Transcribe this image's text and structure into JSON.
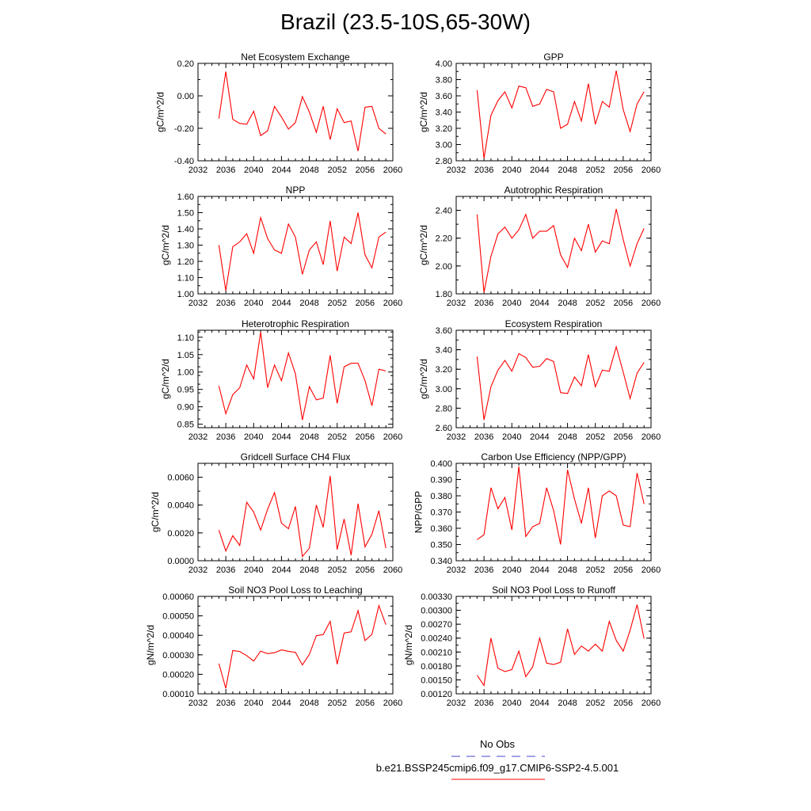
{
  "title": "Brazil (23.5-10S,65-30W)",
  "legend": {
    "obs_label": "No Obs",
    "obs_color": "#4444cc",
    "model_label": "b.e21.BSSP245cmip6.f09_g17.CMIP6-SSP2-4.5.001",
    "model_color": "#ff0000"
  },
  "chart_data": [
    {
      "type": "line",
      "title": "Net Ecosystem Exchange",
      "ylabel": "gC/m^2/d",
      "xlim": [
        2032,
        2060
      ],
      "xticks": [
        "2032",
        "2036",
        "2040",
        "2044",
        "2048",
        "2052",
        "2056",
        "2060"
      ],
      "ylim": [
        -0.4,
        0.2
      ],
      "yticks": [
        "-0.40",
        "-0.20",
        "0.00",
        "0.20"
      ],
      "x": [
        2035,
        2036,
        2037,
        2038,
        2039,
        2040,
        2041,
        2042,
        2043,
        2044,
        2045,
        2046,
        2047,
        2048,
        2049,
        2050,
        2051,
        2052,
        2053,
        2054,
        2055,
        2056,
        2057,
        2058,
        2059
      ],
      "values": [
        -0.14,
        0.15,
        -0.145,
        -0.17,
        -0.175,
        -0.095,
        -0.245,
        -0.215,
        -0.065,
        -0.13,
        -0.205,
        -0.165,
        -0.005,
        -0.1,
        -0.225,
        -0.065,
        -0.27,
        -0.08,
        -0.165,
        -0.155,
        -0.34,
        -0.07,
        -0.065,
        -0.2,
        -0.235
      ]
    },
    {
      "type": "line",
      "title": "GPP",
      "ylabel": "gC/m^2/d",
      "xlim": [
        2032,
        2060
      ],
      "xticks": [
        "2032",
        "2036",
        "2040",
        "2044",
        "2048",
        "2052",
        "2056",
        "2060"
      ],
      "ylim": [
        2.8,
        4.0
      ],
      "yticks": [
        "2.80",
        "3.00",
        "3.20",
        "3.40",
        "3.60",
        "3.80",
        "4.00"
      ],
      "x": [
        2035,
        2036,
        2037,
        2038,
        2039,
        2040,
        2041,
        2042,
        2043,
        2044,
        2045,
        2046,
        2047,
        2048,
        2049,
        2050,
        2051,
        2052,
        2053,
        2054,
        2055,
        2056,
        2057,
        2058,
        2059
      ],
      "values": [
        3.67,
        2.83,
        3.36,
        3.54,
        3.65,
        3.45,
        3.72,
        3.7,
        3.47,
        3.5,
        3.68,
        3.65,
        3.2,
        3.25,
        3.53,
        3.29,
        3.75,
        3.25,
        3.53,
        3.46,
        3.91,
        3.43,
        3.16,
        3.5,
        3.65
      ]
    },
    {
      "type": "line",
      "title": "NPP",
      "ylabel": "gC/m^2/d",
      "xlim": [
        2032,
        2060
      ],
      "xticks": [
        "2032",
        "2036",
        "2040",
        "2044",
        "2048",
        "2052",
        "2056",
        "2060"
      ],
      "ylim": [
        1.0,
        1.6
      ],
      "yticks": [
        "1.00",
        "1.10",
        "1.20",
        "1.30",
        "1.40",
        "1.50",
        "1.60"
      ],
      "x": [
        2035,
        2036,
        2037,
        2038,
        2039,
        2040,
        2041,
        2042,
        2043,
        2044,
        2045,
        2046,
        2047,
        2048,
        2049,
        2050,
        2051,
        2052,
        2053,
        2054,
        2055,
        2056,
        2057,
        2058,
        2059
      ],
      "values": [
        1.3,
        1.02,
        1.29,
        1.32,
        1.37,
        1.25,
        1.47,
        1.34,
        1.27,
        1.25,
        1.43,
        1.35,
        1.12,
        1.27,
        1.32,
        1.18,
        1.45,
        1.14,
        1.35,
        1.31,
        1.5,
        1.24,
        1.16,
        1.35,
        1.38
      ]
    },
    {
      "type": "line",
      "title": "Autotrophic Respiration",
      "ylabel": "gC/m^2/d",
      "xlim": [
        2032,
        2060
      ],
      "xticks": [
        "2032",
        "2036",
        "2040",
        "2044",
        "2048",
        "2052",
        "2056",
        "2060"
      ],
      "ylim": [
        1.8,
        2.5
      ],
      "yticks": [
        "1.80",
        "2.00",
        "2.20",
        "2.40"
      ],
      "x": [
        2035,
        2036,
        2037,
        2038,
        2039,
        2040,
        2041,
        2042,
        2043,
        2044,
        2045,
        2046,
        2047,
        2048,
        2049,
        2050,
        2051,
        2052,
        2053,
        2054,
        2055,
        2056,
        2057,
        2058,
        2059
      ],
      "values": [
        2.37,
        1.81,
        2.07,
        2.23,
        2.28,
        2.2,
        2.26,
        2.37,
        2.2,
        2.25,
        2.25,
        2.29,
        2.08,
        1.99,
        2.2,
        2.11,
        2.3,
        2.1,
        2.18,
        2.16,
        2.41,
        2.19,
        2.0,
        2.16,
        2.27
      ]
    },
    {
      "type": "line",
      "title": "Heterotrophic Respiration",
      "ylabel": "gC/m^2/d",
      "xlim": [
        2032,
        2060
      ],
      "xticks": [
        "2032",
        "2036",
        "2040",
        "2044",
        "2048",
        "2052",
        "2056",
        "2060"
      ],
      "ylim": [
        0.84,
        1.12
      ],
      "yticks": [
        "0.85",
        "0.90",
        "0.95",
        "1.00",
        "1.05",
        "1.10"
      ],
      "x": [
        2035,
        2036,
        2037,
        2038,
        2039,
        2040,
        2041,
        2042,
        2043,
        2044,
        2045,
        2046,
        2047,
        2048,
        2049,
        2050,
        2051,
        2052,
        2053,
        2054,
        2055,
        2056,
        2057,
        2058,
        2059
      ],
      "values": [
        0.96,
        0.88,
        0.935,
        0.955,
        1.02,
        0.98,
        1.115,
        0.955,
        1.02,
        0.975,
        1.055,
        0.995,
        0.862,
        0.958,
        0.92,
        0.925,
        1.048,
        0.91,
        1.015,
        1.025,
        1.025,
        0.975,
        0.903,
        1.008,
        1.003
      ]
    },
    {
      "type": "line",
      "title": "Ecosystem Respiration",
      "ylabel": "gC/m^2/d",
      "xlim": [
        2032,
        2060
      ],
      "xticks": [
        "2032",
        "2036",
        "2040",
        "2044",
        "2048",
        "2052",
        "2056",
        "2060"
      ],
      "ylim": [
        2.6,
        3.6
      ],
      "yticks": [
        "2.60",
        "2.80",
        "3.00",
        "3.20",
        "3.40",
        "3.60"
      ],
      "x": [
        2035,
        2036,
        2037,
        2038,
        2039,
        2040,
        2041,
        2042,
        2043,
        2044,
        2045,
        2046,
        2047,
        2048,
        2049,
        2050,
        2051,
        2052,
        2053,
        2054,
        2055,
        2056,
        2057,
        2058,
        2059
      ],
      "values": [
        3.33,
        2.68,
        3.02,
        3.19,
        3.29,
        3.18,
        3.36,
        3.32,
        3.22,
        3.23,
        3.31,
        3.28,
        2.96,
        2.95,
        3.12,
        3.03,
        3.35,
        3.02,
        3.19,
        3.18,
        3.43,
        3.17,
        2.9,
        3.16,
        3.27
      ]
    },
    {
      "type": "line",
      "title": "Gridcell Surface CH4 Flux",
      "ylabel": "gC/m^2/d",
      "xlim": [
        2032,
        2060
      ],
      "xticks": [
        "2032",
        "2036",
        "2040",
        "2044",
        "2048",
        "2052",
        "2056",
        "2060"
      ],
      "ylim": [
        0.0,
        0.007
      ],
      "yticks": [
        "0.0000",
        "0.0020",
        "0.0040",
        "0.0060"
      ],
      "x": [
        2035,
        2036,
        2037,
        2038,
        2039,
        2040,
        2041,
        2042,
        2043,
        2044,
        2045,
        2046,
        2047,
        2048,
        2049,
        2050,
        2051,
        2052,
        2053,
        2054,
        2055,
        2056,
        2057,
        2058,
        2059
      ],
      "values": [
        0.0022,
        0.0007,
        0.0018,
        0.0011,
        0.0042,
        0.0035,
        0.0022,
        0.0037,
        0.0049,
        0.0027,
        0.0023,
        0.0039,
        0.0003,
        0.0009,
        0.004,
        0.0024,
        0.0061,
        0.0008,
        0.003,
        0.0004,
        0.0041,
        0.001,
        0.0019,
        0.0036,
        0.0009
      ]
    },
    {
      "type": "line",
      "title": "Carbon Use Efficiency (NPP/GPP)",
      "ylabel": "NPP/GPP",
      "xlim": [
        2032,
        2060
      ],
      "xticks": [
        "2032",
        "2036",
        "2040",
        "2044",
        "2048",
        "2052",
        "2056",
        "2060"
      ],
      "ylim": [
        0.34,
        0.4
      ],
      "yticks": [
        "0.340",
        "0.350",
        "0.360",
        "0.370",
        "0.380",
        "0.390",
        "0.400"
      ],
      "x": [
        2035,
        2036,
        2037,
        2038,
        2039,
        2040,
        2041,
        2042,
        2043,
        2044,
        2045,
        2046,
        2047,
        2048,
        2049,
        2050,
        2051,
        2052,
        2053,
        2054,
        2055,
        2056,
        2057,
        2058,
        2059
      ],
      "values": [
        0.353,
        0.356,
        0.385,
        0.372,
        0.379,
        0.359,
        0.398,
        0.355,
        0.361,
        0.363,
        0.385,
        0.371,
        0.35,
        0.396,
        0.378,
        0.363,
        0.385,
        0.354,
        0.38,
        0.383,
        0.38,
        0.362,
        0.361,
        0.394,
        0.375
      ]
    },
    {
      "type": "line",
      "title": "Soil NO3 Pool Loss to Leaching",
      "ylabel": "gN/m^2/d",
      "xlim": [
        2032,
        2060
      ],
      "xticks": [
        "2032",
        "2036",
        "2040",
        "2044",
        "2048",
        "2052",
        "2056",
        "2060"
      ],
      "ylim": [
        0.0001,
        0.0006
      ],
      "yticks": [
        "0.00010",
        "0.00020",
        "0.00030",
        "0.00040",
        "0.00050",
        "0.00060"
      ],
      "x": [
        2035,
        2036,
        2037,
        2038,
        2039,
        2040,
        2041,
        2042,
        2043,
        2044,
        2045,
        2046,
        2047,
        2048,
        2049,
        2050,
        2051,
        2052,
        2053,
        2054,
        2055,
        2056,
        2057,
        2058,
        2059
      ],
      "values": [
        0.000255,
        0.000128,
        0.000322,
        0.000317,
        0.000296,
        0.000268,
        0.000319,
        0.000306,
        0.000311,
        0.000325,
        0.000318,
        0.000313,
        0.000248,
        0.000302,
        0.000398,
        0.000404,
        0.000472,
        0.000252,
        0.000412,
        0.000418,
        0.000527,
        0.000373,
        0.000405,
        0.000553,
        0.000455
      ]
    },
    {
      "type": "line",
      "title": "Soil NO3 Pool Loss to Runoff",
      "ylabel": "gN/m^2/d",
      "xlim": [
        2032,
        2060
      ],
      "xticks": [
        "2032",
        "2036",
        "2040",
        "2044",
        "2048",
        "2052",
        "2056",
        "2060"
      ],
      "ylim": [
        0.0012,
        0.0033
      ],
      "yticks": [
        "0.00120",
        "0.00150",
        "0.00180",
        "0.00210",
        "0.00240",
        "0.00270",
        "0.00300",
        "0.00330"
      ],
      "x": [
        2035,
        2036,
        2037,
        2038,
        2039,
        2040,
        2041,
        2042,
        2043,
        2044,
        2045,
        2046,
        2047,
        2048,
        2049,
        2050,
        2051,
        2052,
        2053,
        2054,
        2055,
        2056,
        2057,
        2058,
        2059
      ],
      "values": [
        0.0016,
        0.00138,
        0.0024,
        0.00175,
        0.00168,
        0.00172,
        0.00212,
        0.00157,
        0.00178,
        0.0024,
        0.00186,
        0.00183,
        0.00188,
        0.0026,
        0.00205,
        0.00223,
        0.00212,
        0.00227,
        0.00212,
        0.00276,
        0.00235,
        0.00212,
        0.00257,
        0.00312,
        0.00239
      ]
    }
  ]
}
